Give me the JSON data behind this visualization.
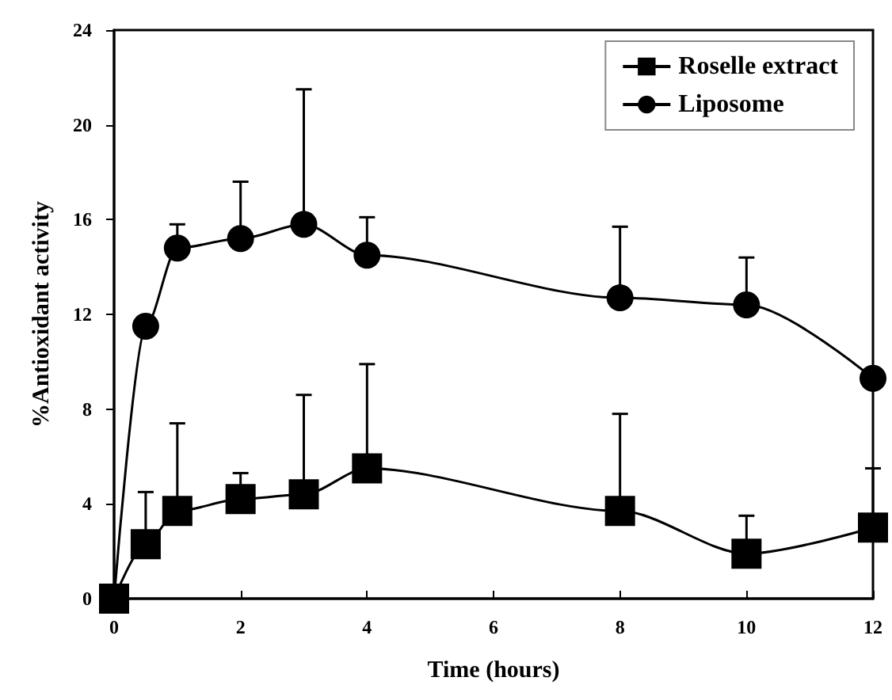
{
  "chart_data": {
    "type": "line",
    "xlabel": "Time (hours)",
    "ylabel": "%Antioxidant activity",
    "x": [
      0,
      0.5,
      1,
      2,
      3,
      4,
      8,
      10,
      12
    ],
    "series": [
      {
        "name": "Roselle extract",
        "color": "#000000",
        "marker": "square",
        "values": [
          0,
          2.3,
          3.7,
          4.2,
          4.4,
          5.5,
          3.7,
          1.9,
          3.0
        ],
        "errors": [
          null,
          [
            2.3,
            4.5
          ],
          [
            3.7,
            7.4
          ],
          [
            4.2,
            5.3
          ],
          [
            4.4,
            8.6
          ],
          [
            5.5,
            9.9
          ],
          [
            3.7,
            7.8
          ],
          [
            1.9,
            3.5
          ],
          [
            3.0,
            5.5
          ]
        ]
      },
      {
        "name": "Liposome",
        "color": "#000000",
        "marker": "circle",
        "values": [
          0,
          11.5,
          14.8,
          15.2,
          15.8,
          14.5,
          12.7,
          12.4,
          9.3
        ],
        "errors": [
          null,
          null,
          [
            14.8,
            15.8
          ],
          [
            15.2,
            17.6
          ],
          [
            15.8,
            21.5
          ],
          [
            14.5,
            16.1
          ],
          [
            12.7,
            15.7
          ],
          [
            12.4,
            14.4
          ],
          null
        ]
      }
    ],
    "xlim": [
      0,
      12
    ],
    "xticks": [
      0,
      2,
      4,
      6,
      8,
      10,
      12
    ],
    "ylim": [
      0,
      24
    ],
    "yticks": [
      0,
      4,
      8,
      12,
      16,
      20,
      24
    ],
    "grid": false,
    "legend": "top right",
    "line_style": "solid"
  }
}
